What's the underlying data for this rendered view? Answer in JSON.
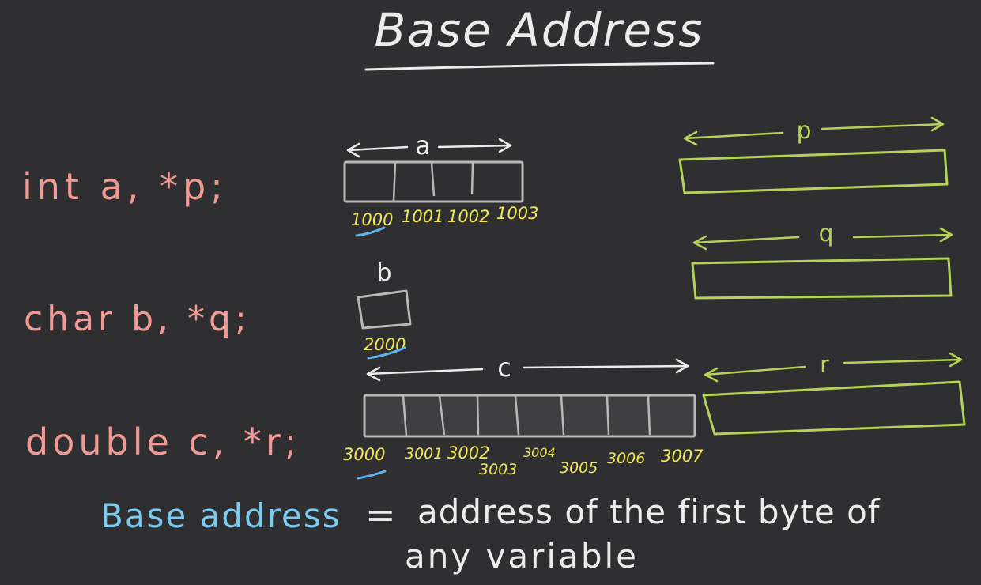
{
  "title": "Base Address",
  "declarations": [
    {
      "text": "int a, *p;"
    },
    {
      "text": "char b, *q;"
    },
    {
      "text": "double c, *r;"
    }
  ],
  "variables": {
    "a": {
      "label": "a",
      "addresses": [
        "1000",
        "1001",
        "1002",
        "1003"
      ]
    },
    "b": {
      "label": "b",
      "addresses": [
        "2000"
      ]
    },
    "c": {
      "label": "c",
      "addresses": [
        "3000",
        "3001",
        "3002",
        "3003",
        "3004",
        "3005",
        "3006",
        "3007"
      ]
    }
  },
  "pointers": [
    {
      "label": "p"
    },
    {
      "label": "q"
    },
    {
      "label": "r"
    }
  ],
  "definition": {
    "term": "Base address",
    "equals": "=",
    "line1": "address of the first byte of",
    "line2": "any variable"
  },
  "colors": {
    "background": "#2f2f31",
    "chalk_white": "#ececec",
    "declaration": "#ef9a94",
    "address": "#f3e657",
    "underline": "#5fb4f0",
    "pointer": "#b5d25a",
    "term": "#7ecbf0",
    "box_gray": "#b9b9b9",
    "box_fill_c": "#3f3f41"
  }
}
